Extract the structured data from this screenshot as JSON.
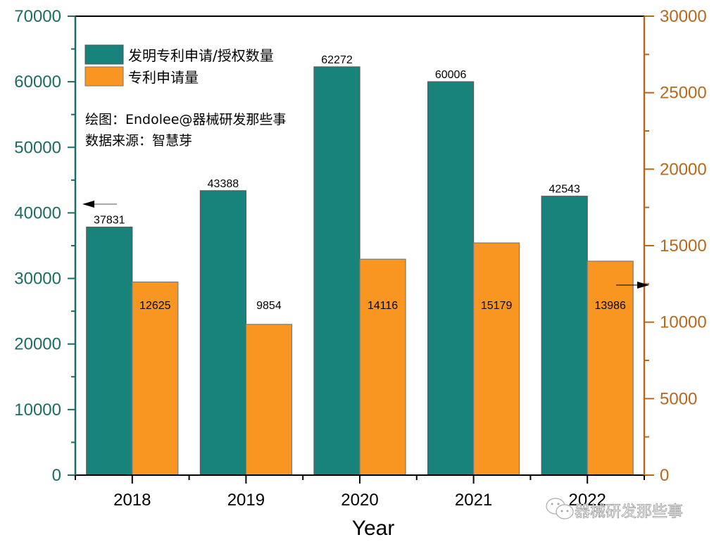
{
  "chart_data": {
    "type": "bar",
    "categories": [
      "2018",
      "2019",
      "2020",
      "2021",
      "2022"
    ],
    "series": [
      {
        "name": "发明专利申请/授权数量",
        "axis": "left",
        "color": "#18837a",
        "values": [
          37831,
          43388,
          62272,
          60006,
          42543
        ],
        "labels": [
          "37831",
          "43388",
          "62272",
          "60006",
          "42543"
        ]
      },
      {
        "name": "专利申请量",
        "axis": "right",
        "color": "#f99621",
        "values": [
          12625,
          9854,
          14116,
          15179,
          13986
        ],
        "labels": [
          "12625",
          "9854",
          "14116",
          "15179",
          "13986"
        ]
      }
    ],
    "xlabel": "Year",
    "ylabel_left": "",
    "ylabel_right": "",
    "ylim_left": [
      0,
      70000
    ],
    "ylim_right": [
      0,
      30000
    ],
    "yticks_left": [
      "0",
      "10000",
      "20000",
      "30000",
      "40000",
      "50000",
      "60000",
      "70000"
    ],
    "yticks_right": [
      "0",
      "5000",
      "10000",
      "15000",
      "20000",
      "25000",
      "30000"
    ],
    "grid": false,
    "legend_position": "top-left",
    "annotations": {
      "credit": "绘图：Endolee@器械研发那些事",
      "source": "数据来源：智慧芽",
      "left_arrow": "points to left axis",
      "right_arrow": "points to right axis"
    },
    "axis_colors": {
      "left": "#1d6b62",
      "right": "#b8681e"
    }
  },
  "watermark": {
    "text": "器械研发那些事",
    "icon": "wechat-icon"
  }
}
